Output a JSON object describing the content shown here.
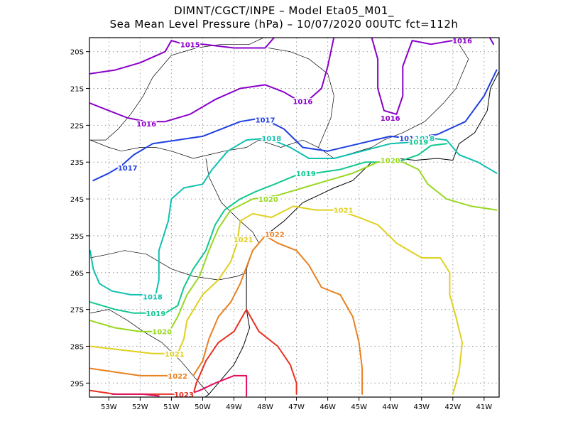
{
  "title": {
    "line1": "DIMNT/CGCT/INPE –  Model Eta05_M01_",
    "line2": "Sea Mean Level Pressure (hPa) – 10/07/2020 00UTC fct=112h"
  },
  "axes": {
    "lon_ticks": [
      "53W",
      "52W",
      "51W",
      "50W",
      "49W",
      "48W",
      "47W",
      "46W",
      "45W",
      "44W",
      "43W",
      "42W",
      "41W"
    ],
    "lat_ticks": [
      "20S",
      "21S",
      "22S",
      "23S",
      "24S",
      "25S",
      "26S",
      "27S",
      "28S",
      "29S"
    ]
  },
  "colors": {
    "1015": "#8a00c8",
    "1016": "#8a00c8",
    "1017": "#1f3fe0",
    "1018": "#10c0b0",
    "1019": "#10c890",
    "1020": "#98d820",
    "1021": "#e0d020",
    "1022": "#e88020",
    "1023": "#e83020",
    "1024": "#e01060"
  },
  "contour_labels": [
    {
      "text": "1015",
      "lon": -50.4,
      "lat": -19.8,
      "level": "1015"
    },
    {
      "text": "1016",
      "lon": -46.8,
      "lat": -21.35,
      "level": "1016"
    },
    {
      "text": "1016",
      "lon": -51.8,
      "lat": -21.95,
      "level": "1016"
    },
    {
      "text": "1016",
      "lon": -44.0,
      "lat": -21.8,
      "level": "1016"
    },
    {
      "text": "1016",
      "lon": -41.7,
      "lat": -19.7,
      "level": "1016"
    },
    {
      "text": "1017",
      "lon": -48.0,
      "lat": -21.85,
      "level": "1017"
    },
    {
      "text": "1017",
      "lon": -52.4,
      "lat": -23.15,
      "level": "1017"
    },
    {
      "text": "1017",
      "lon": -43.4,
      "lat": -22.35,
      "level": "1017"
    },
    {
      "text": "1018",
      "lon": -47.8,
      "lat": -22.35,
      "level": "1018"
    },
    {
      "text": "1018",
      "lon": -42.9,
      "lat": -22.35,
      "level": "1018"
    },
    {
      "text": "1018",
      "lon": -51.6,
      "lat": -26.65,
      "level": "1018"
    },
    {
      "text": "1019",
      "lon": -46.7,
      "lat": -23.3,
      "level": "1019"
    },
    {
      "text": "1019",
      "lon": -43.1,
      "lat": -22.45,
      "level": "1019"
    },
    {
      "text": "1019",
      "lon": -51.5,
      "lat": -27.1,
      "level": "1019"
    },
    {
      "text": "1020",
      "lon": -47.9,
      "lat": -24.0,
      "level": "1020"
    },
    {
      "text": "1020",
      "lon": -44.0,
      "lat": -22.95,
      "level": "1020"
    },
    {
      "text": "1020",
      "lon": -51.3,
      "lat": -27.6,
      "level": "1020"
    },
    {
      "text": "1021",
      "lon": -45.5,
      "lat": -24.3,
      "level": "1021"
    },
    {
      "text": "1021",
      "lon": -48.7,
      "lat": -25.1,
      "level": "1021"
    },
    {
      "text": "1021",
      "lon": -50.9,
      "lat": -28.2,
      "level": "1021"
    },
    {
      "text": "1022",
      "lon": -47.7,
      "lat": -24.95,
      "level": "1022"
    },
    {
      "text": "1022",
      "lon": -50.8,
      "lat": -28.8,
      "level": "1022"
    },
    {
      "text": "1023",
      "lon": -50.6,
      "lat": -29.3,
      "level": "1023"
    }
  ],
  "contours": [
    {
      "level": "1015",
      "points": [
        [
          -53.6,
          -20.6
        ],
        [
          -52.8,
          -20.5
        ],
        [
          -52.0,
          -20.3
        ],
        [
          -51.2,
          -20.0
        ],
        [
          -51.0,
          -19.7
        ],
        [
          -50.6,
          -19.8
        ],
        [
          -50.0,
          -19.8
        ],
        [
          -49.0,
          -19.9
        ],
        [
          -48.0,
          -19.9
        ],
        [
          -47.7,
          -19.6
        ]
      ]
    },
    {
      "level": "1016",
      "points": [
        [
          -53.6,
          -21.4
        ],
        [
          -53.0,
          -21.6
        ],
        [
          -52.4,
          -21.8
        ],
        [
          -51.8,
          -21.9
        ],
        [
          -51.2,
          -21.9
        ],
        [
          -50.4,
          -21.7
        ],
        [
          -49.6,
          -21.3
        ],
        [
          -48.8,
          -21.0
        ],
        [
          -48.0,
          -20.9
        ],
        [
          -47.4,
          -21.1
        ],
        [
          -47.0,
          -21.3
        ],
        [
          -46.6,
          -21.3
        ],
        [
          -46.2,
          -21.0
        ],
        [
          -46.0,
          -20.4
        ],
        [
          -45.8,
          -19.6
        ]
      ]
    },
    {
      "level": "1016",
      "points": [
        [
          -44.6,
          -19.6
        ],
        [
          -44.4,
          -20.2
        ],
        [
          -44.4,
          -21.0
        ],
        [
          -44.2,
          -21.6
        ],
        [
          -43.8,
          -21.7
        ],
        [
          -43.6,
          -21.2
        ],
        [
          -43.6,
          -20.4
        ],
        [
          -43.3,
          -19.7
        ],
        [
          -42.7,
          -19.8
        ],
        [
          -42.0,
          -19.7
        ],
        [
          -41.4,
          -19.6
        ],
        [
          -40.9,
          -19.5
        ],
        [
          -40.7,
          -19.8
        ]
      ]
    },
    {
      "level": "1017",
      "points": [
        [
          -53.5,
          -23.5
        ],
        [
          -53.0,
          -23.3
        ],
        [
          -52.6,
          -23.1
        ],
        [
          -52.2,
          -22.8
        ],
        [
          -51.6,
          -22.5
        ],
        [
          -50.8,
          -22.4
        ],
        [
          -50.0,
          -22.3
        ],
        [
          -49.4,
          -22.1
        ],
        [
          -48.8,
          -21.9
        ],
        [
          -48.1,
          -21.8
        ],
        [
          -47.4,
          -22.1
        ],
        [
          -46.8,
          -22.6
        ],
        [
          -46.0,
          -22.7
        ],
        [
          -45.0,
          -22.5
        ],
        [
          -44.0,
          -22.3
        ],
        [
          -43.4,
          -22.35
        ],
        [
          -42.5,
          -22.25
        ],
        [
          -41.6,
          -21.9
        ],
        [
          -41.0,
          -21.2
        ],
        [
          -40.6,
          -20.5
        ]
      ]
    },
    {
      "level": "1018",
      "points": [
        [
          -53.6,
          -25.4
        ],
        [
          -53.5,
          -25.9
        ],
        [
          -53.3,
          -26.3
        ],
        [
          -52.9,
          -26.5
        ],
        [
          -52.3,
          -26.6
        ],
        [
          -51.8,
          -26.6
        ]
      ]
    },
    {
      "level": "1018",
      "points": [
        [
          -51.5,
          -26.6
        ],
        [
          -51.4,
          -26.2
        ],
        [
          -51.4,
          -25.4
        ],
        [
          -51.1,
          -24.6
        ],
        [
          -51.0,
          -24.0
        ],
        [
          -50.6,
          -23.7
        ],
        [
          -50.0,
          -23.6
        ],
        [
          -49.7,
          -23.2
        ],
        [
          -49.2,
          -22.7
        ],
        [
          -48.6,
          -22.4
        ],
        [
          -47.9,
          -22.35
        ],
        [
          -47.2,
          -22.6
        ],
        [
          -46.6,
          -22.9
        ],
        [
          -45.8,
          -22.9
        ],
        [
          -44.9,
          -22.7
        ],
        [
          -44.0,
          -22.5
        ],
        [
          -43.2,
          -22.45
        ],
        [
          -42.7,
          -22.35
        ],
        [
          -42.2,
          -22.4
        ],
        [
          -41.8,
          -22.8
        ],
        [
          -41.2,
          -23.0
        ],
        [
          -40.6,
          -23.3
        ]
      ]
    },
    {
      "level": "1019",
      "points": [
        [
          -53.6,
          -26.8
        ],
        [
          -52.8,
          -27.0
        ],
        [
          -52.2,
          -27.1
        ],
        [
          -51.7,
          -27.1
        ]
      ]
    },
    {
      "level": "1019",
      "points": [
        [
          -51.2,
          -27.1
        ],
        [
          -50.8,
          -26.9
        ],
        [
          -50.6,
          -26.4
        ],
        [
          -50.3,
          -25.9
        ],
        [
          -49.9,
          -25.4
        ],
        [
          -49.6,
          -24.7
        ],
        [
          -49.3,
          -24.3
        ],
        [
          -48.8,
          -24.0
        ],
        [
          -48.3,
          -23.8
        ],
        [
          -47.7,
          -23.6
        ],
        [
          -47.0,
          -23.35
        ],
        [
          -46.4,
          -23.3
        ],
        [
          -45.6,
          -23.2
        ],
        [
          -44.8,
          -23.0
        ],
        [
          -44.2,
          -23.0
        ],
        [
          -43.6,
          -22.95
        ],
        [
          -43.1,
          -22.8
        ],
        [
          -42.7,
          -22.55
        ],
        [
          -42.2,
          -22.5
        ]
      ]
    },
    {
      "level": "1020",
      "points": [
        [
          -53.6,
          -27.3
        ],
        [
          -52.8,
          -27.5
        ],
        [
          -52.0,
          -27.6
        ],
        [
          -51.5,
          -27.6
        ]
      ]
    },
    {
      "level": "1020",
      "points": [
        [
          -51.0,
          -27.5
        ],
        [
          -50.8,
          -27.2
        ],
        [
          -50.5,
          -26.6
        ],
        [
          -50.1,
          -26.1
        ],
        [
          -49.8,
          -25.4
        ],
        [
          -49.5,
          -24.8
        ],
        [
          -49.1,
          -24.3
        ],
        [
          -48.4,
          -24.0
        ],
        [
          -47.6,
          -23.9
        ],
        [
          -46.8,
          -23.7
        ],
        [
          -46.0,
          -23.5
        ],
        [
          -45.2,
          -23.3
        ],
        [
          -44.4,
          -23.0
        ],
        [
          -43.6,
          -23.0
        ],
        [
          -43.1,
          -23.2
        ],
        [
          -42.8,
          -23.6
        ],
        [
          -42.2,
          -24.0
        ],
        [
          -41.4,
          -24.2
        ],
        [
          -40.6,
          -24.3
        ]
      ]
    },
    {
      "level": "1021",
      "points": [
        [
          -53.6,
          -28.0
        ],
        [
          -52.6,
          -28.1
        ],
        [
          -51.6,
          -28.2
        ],
        [
          -51.1,
          -28.2
        ]
      ]
    },
    {
      "level": "1021",
      "points": [
        [
          -50.8,
          -28.2
        ],
        [
          -50.6,
          -27.8
        ],
        [
          -50.5,
          -27.3
        ],
        [
          -50.0,
          -26.6
        ],
        [
          -49.5,
          -26.2
        ],
        [
          -49.1,
          -25.7
        ],
        [
          -48.9,
          -25.2
        ],
        [
          -48.8,
          -24.6
        ],
        [
          -48.4,
          -24.4
        ],
        [
          -47.8,
          -24.5
        ],
        [
          -47.1,
          -24.2
        ],
        [
          -46.4,
          -24.3
        ],
        [
          -45.7,
          -24.3
        ],
        [
          -45.0,
          -24.5
        ],
        [
          -44.4,
          -24.7
        ],
        [
          -43.8,
          -25.2
        ],
        [
          -43.0,
          -25.6
        ],
        [
          -42.4,
          -25.6
        ],
        [
          -42.1,
          -26.0
        ],
        [
          -42.1,
          -26.6
        ],
        [
          -41.9,
          -27.2
        ],
        [
          -41.7,
          -27.9
        ],
        [
          -41.8,
          -28.7
        ],
        [
          -42.0,
          -29.3
        ]
      ]
    },
    {
      "level": "1022",
      "points": [
        [
          -53.6,
          -28.6
        ],
        [
          -52.8,
          -28.7
        ],
        [
          -52.0,
          -28.8
        ],
        [
          -51.5,
          -28.8
        ],
        [
          -51.0,
          -28.8
        ]
      ]
    },
    {
      "level": "1022",
      "points": [
        [
          -50.3,
          -28.8
        ],
        [
          -50.0,
          -28.4
        ],
        [
          -49.8,
          -27.8
        ],
        [
          -49.5,
          -27.2
        ],
        [
          -49.1,
          -26.8
        ],
        [
          -48.8,
          -26.3
        ],
        [
          -48.4,
          -25.4
        ],
        [
          -48.0,
          -25.0
        ],
        [
          -47.6,
          -25.2
        ],
        [
          -47.0,
          -25.4
        ],
        [
          -46.6,
          -25.8
        ],
        [
          -46.2,
          -26.4
        ],
        [
          -45.6,
          -26.6
        ],
        [
          -45.2,
          -27.2
        ],
        [
          -45.0,
          -27.9
        ],
        [
          -44.9,
          -28.6
        ],
        [
          -44.9,
          -29.3
        ]
      ]
    },
    {
      "level": "1023",
      "points": [
        [
          -53.6,
          -29.2
        ],
        [
          -52.8,
          -29.3
        ],
        [
          -52.0,
          -29.3
        ],
        [
          -51.4,
          -29.3
        ],
        [
          -50.9,
          -29.3
        ]
      ]
    },
    {
      "level": "1023",
      "points": [
        [
          -50.3,
          -29.3
        ],
        [
          -50.2,
          -29.0
        ],
        [
          -49.9,
          -28.4
        ],
        [
          -49.5,
          -27.9
        ],
        [
          -49.0,
          -27.6
        ],
        [
          -48.6,
          -27.0
        ],
        [
          -48.2,
          -27.6
        ],
        [
          -47.6,
          -28.0
        ],
        [
          -47.2,
          -28.5
        ],
        [
          -47.0,
          -29.0
        ],
        [
          -47.0,
          -29.3
        ]
      ]
    },
    {
      "level": "1024",
      "points": [
        [
          -52.9,
          -29.3
        ],
        [
          -52.4,
          -29.3
        ],
        [
          -51.9,
          -29.3
        ],
        [
          -51.4,
          -29.35
        ]
      ]
    },
    {
      "level": "1024",
      "points": [
        [
          -50.6,
          -29.35
        ],
        [
          -50.1,
          -29.2
        ],
        [
          -49.6,
          -29.0
        ],
        [
          -49.0,
          -28.8
        ],
        [
          -48.6,
          -28.8
        ],
        [
          -48.6,
          -29.35
        ]
      ]
    }
  ],
  "coastline": [
    [
      [
        -44.6,
        -23.0
      ],
      [
        -44.2,
        -23.0
      ],
      [
        -43.8,
        -22.9
      ],
      [
        -43.2,
        -22.95
      ],
      [
        -42.5,
        -22.9
      ],
      [
        -42.0,
        -22.95
      ],
      [
        -41.8,
        -22.5
      ],
      [
        -41.3,
        -22.2
      ],
      [
        -40.9,
        -21.6
      ],
      [
        -40.8,
        -21.0
      ],
      [
        -40.5,
        -20.5
      ]
    ],
    [
      [
        -44.6,
        -23.0
      ],
      [
        -45.2,
        -23.5
      ],
      [
        -45.8,
        -23.7
      ],
      [
        -46.3,
        -23.9
      ],
      [
        -46.8,
        -24.1
      ],
      [
        -47.4,
        -24.6
      ],
      [
        -48.0,
        -25.0
      ],
      [
        -48.4,
        -25.4
      ],
      [
        -48.6,
        -25.9
      ],
      [
        -48.6,
        -26.5
      ],
      [
        -48.6,
        -27.0
      ],
      [
        -48.5,
        -27.5
      ],
      [
        -48.7,
        -28.0
      ],
      [
        -49.0,
        -28.5
      ],
      [
        -49.4,
        -28.9
      ],
      [
        -49.8,
        -29.3
      ],
      [
        -50.1,
        -29.5
      ]
    ]
  ],
  "borders": [
    [
      [
        -53.6,
        -22.4
      ],
      [
        -53.1,
        -22.4
      ],
      [
        -52.7,
        -22.1
      ],
      [
        -52.3,
        -21.7
      ],
      [
        -51.9,
        -21.2
      ],
      [
        -51.6,
        -20.7
      ],
      [
        -51.0,
        -20.1
      ],
      [
        -50.2,
        -19.9
      ],
      [
        -49.4,
        -19.8
      ],
      [
        -48.5,
        -19.8
      ],
      [
        -48.0,
        -19.6
      ]
    ],
    [
      [
        -53.6,
        -22.4
      ],
      [
        -53.0,
        -22.6
      ],
      [
        -52.6,
        -22.7
      ],
      [
        -52.0,
        -22.6
      ],
      [
        -51.5,
        -22.6
      ],
      [
        -51.0,
        -22.7
      ],
      [
        -50.3,
        -22.9
      ],
      [
        -49.8,
        -22.8
      ],
      [
        -49.3,
        -22.7
      ],
      [
        -48.6,
        -22.6
      ],
      [
        -48.2,
        -22.4
      ],
      [
        -47.5,
        -22.6
      ],
      [
        -46.8,
        -22.4
      ],
      [
        -46.3,
        -22.6
      ],
      [
        -45.8,
        -22.9
      ],
      [
        -45.0,
        -22.7
      ],
      [
        -44.6,
        -22.6
      ]
    ],
    [
      [
        -46.3,
        -22.6
      ],
      [
        -45.9,
        -21.8
      ],
      [
        -45.8,
        -21.2
      ],
      [
        -46.0,
        -20.6
      ],
      [
        -46.6,
        -20.2
      ],
      [
        -47.2,
        -20.0
      ],
      [
        -47.9,
        -19.9
      ]
    ],
    [
      [
        -44.6,
        -22.6
      ],
      [
        -44.2,
        -22.4
      ],
      [
        -43.6,
        -22.2
      ],
      [
        -42.9,
        -21.9
      ],
      [
        -42.3,
        -21.4
      ],
      [
        -41.9,
        -21.0
      ],
      [
        -41.7,
        -20.6
      ],
      [
        -41.5,
        -20.2
      ],
      [
        -41.8,
        -19.8
      ]
    ],
    [
      [
        -53.6,
        -25.6
      ],
      [
        -53.0,
        -25.5
      ],
      [
        -52.5,
        -25.4
      ],
      [
        -51.8,
        -25.5
      ],
      [
        -51.0,
        -25.9
      ],
      [
        -50.3,
        -26.1
      ],
      [
        -49.5,
        -26.2
      ],
      [
        -48.9,
        -26.1
      ],
      [
        -48.6,
        -26.0
      ]
    ],
    [
      [
        -53.6,
        -27.1
      ],
      [
        -53.0,
        -27.0
      ],
      [
        -52.4,
        -27.3
      ],
      [
        -51.9,
        -27.6
      ],
      [
        -51.3,
        -27.9
      ],
      [
        -50.7,
        -28.4
      ],
      [
        -50.2,
        -28.9
      ],
      [
        -49.8,
        -29.3
      ]
    ],
    [
      [
        -49.9,
        -22.9
      ],
      [
        -49.8,
        -23.4
      ],
      [
        -49.4,
        -24.1
      ],
      [
        -48.8,
        -24.6
      ],
      [
        -48.4,
        -24.9
      ],
      [
        -48.2,
        -25.2
      ]
    ]
  ]
}
